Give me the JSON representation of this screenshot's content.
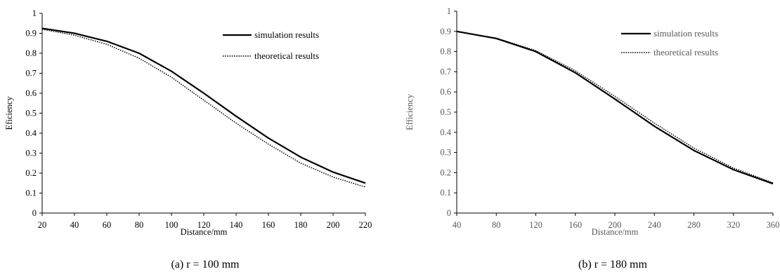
{
  "figure": {
    "charts": [
      {
        "caption": "(a) r = 100 mm",
        "ylabel": "Eficiency",
        "xlabel": "Distance/mm",
        "colors": {
          "axis": "#000000",
          "label": "#000000",
          "series": "#000000"
        }
      },
      {
        "caption": "(b) r = 180 mm",
        "ylabel": "Efficiency",
        "xlabel": "Distance/mm",
        "colors": {
          "axis": "#000000",
          "label": "#595959",
          "series": "#000000"
        }
      }
    ]
  },
  "chart_data": [
    {
      "type": "line",
      "title": "",
      "xlabel": "Distance/mm",
      "ylabel": "Eficiency",
      "xlim": [
        20,
        220
      ],
      "ylim": [
        0,
        1
      ],
      "x_ticks": [
        "20",
        "40",
        "60",
        "80",
        "100",
        "120",
        "140",
        "160",
        "180",
        "200",
        "220"
      ],
      "y_ticks": [
        "0",
        "0.1",
        "0.2",
        "0.3",
        "0.4",
        "0.5",
        "0.6",
        "0.7",
        "0.8",
        "0.9",
        "1"
      ],
      "x": [
        20,
        40,
        60,
        80,
        100,
        120,
        140,
        160,
        180,
        200,
        220
      ],
      "series": [
        {
          "name": "simulation results",
          "style": "solid",
          "values": [
            0.925,
            0.9,
            0.86,
            0.8,
            0.71,
            0.6,
            0.485,
            0.375,
            0.28,
            0.205,
            0.15
          ]
        },
        {
          "name": "theoretical results",
          "style": "dotted",
          "values": [
            0.92,
            0.89,
            0.845,
            0.775,
            0.68,
            0.565,
            0.45,
            0.345,
            0.25,
            0.18,
            0.13
          ]
        }
      ],
      "legend": "top-right",
      "grid": false
    },
    {
      "type": "line",
      "title": "",
      "xlabel": "Distance/mm",
      "ylabel": "Efficiency",
      "xlim": [
        40,
        360
      ],
      "ylim": [
        0,
        1
      ],
      "x_ticks": [
        "40",
        "80",
        "120",
        "160",
        "200",
        "240",
        "280",
        "320",
        "360"
      ],
      "y_ticks": [
        "0",
        "0.1",
        "0.2",
        "0.3",
        "0.4",
        "0.5",
        "0.6",
        "0.7",
        "0.8",
        "0.9",
        "1"
      ],
      "x": [
        40,
        80,
        120,
        160,
        200,
        240,
        280,
        320,
        360
      ],
      "series": [
        {
          "name": "simulation results",
          "style": "solid",
          "values": [
            0.9,
            0.865,
            0.8,
            0.695,
            0.565,
            0.43,
            0.31,
            0.215,
            0.145
          ]
        },
        {
          "name": "theoretical results",
          "style": "dotted",
          "values": [
            0.9,
            0.867,
            0.805,
            0.705,
            0.578,
            0.445,
            0.322,
            0.223,
            0.15
          ]
        }
      ],
      "legend": "top-right",
      "grid": false
    }
  ]
}
